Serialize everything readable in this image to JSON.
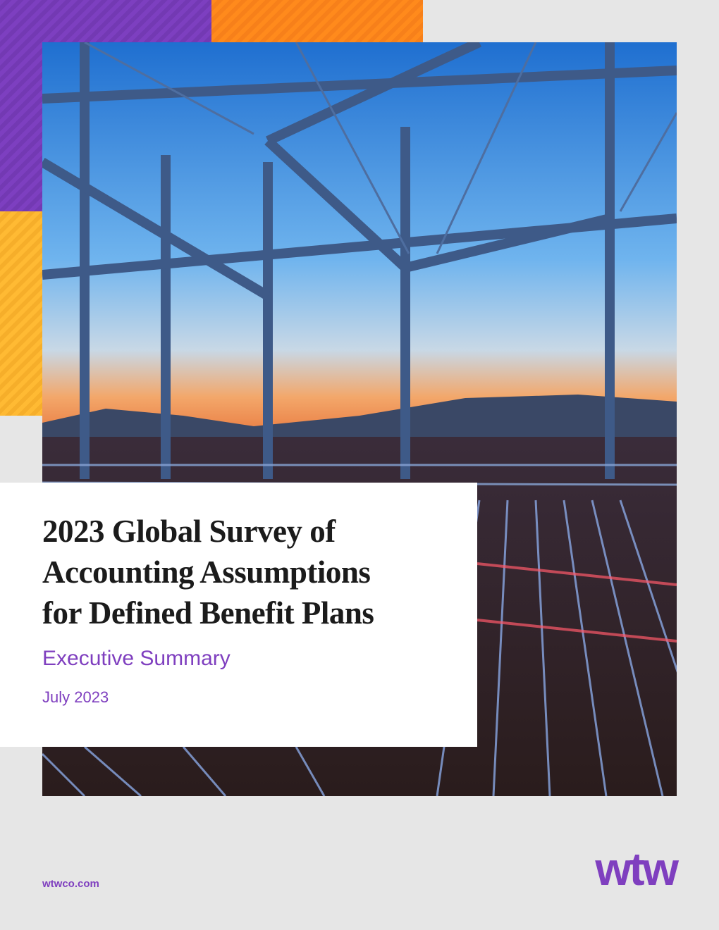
{
  "cover": {
    "title_lines": [
      "2023 Global Survey of",
      "Accounting Assumptions",
      "for Defined Benefit Plans"
    ],
    "subtitle": "Executive Summary",
    "date": "July 2023",
    "website": "wtwco.com",
    "logo": "wtw"
  }
}
